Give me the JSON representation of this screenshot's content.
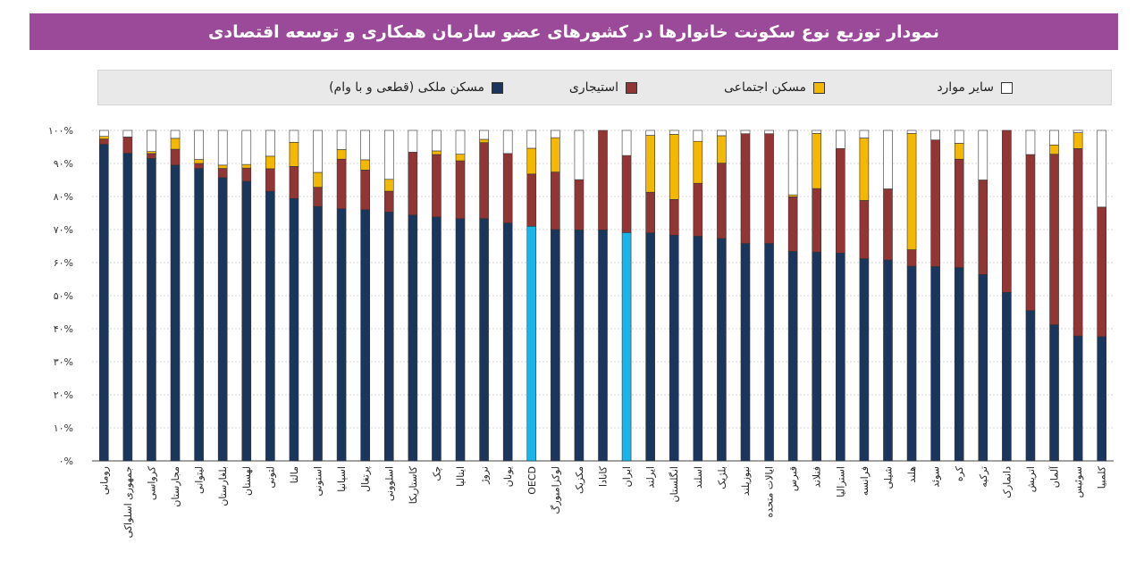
{
  "title": "نمودار توزیع نوع سکونت خانوارها در کشورهای عضو سازمان همکاری و توسعه اقتصادی",
  "colors": {
    "owner": "#1b365d",
    "highlight": "#19b4e8",
    "rent": "#913535",
    "social": "#f5b800",
    "other": "#ffffff"
  },
  "chart_data": {
    "type": "bar",
    "stacked": true,
    "orientation": "vertical",
    "ylim": [
      0,
      100
    ],
    "y_ticks": [
      0,
      10,
      20,
      30,
      40,
      50,
      60,
      70,
      80,
      90,
      100
    ],
    "y_tick_labels": [
      "۰%",
      "۱۰%",
      "۲۰%",
      "۳۰%",
      "۴۰%",
      "۵۰%",
      "۶۰%",
      "۷۰%",
      "۸۰%",
      "۹۰%",
      "۱۰۰%"
    ],
    "grid": true,
    "legend_position": "top",
    "highlighted_categories": [
      "OECD",
      "ایران"
    ],
    "categories": [
      "رومانی",
      "جمهوری اسلواکی",
      "کرواسی",
      "مجارستان",
      "لیتوانی",
      "بلغارستان",
      "لهستان",
      "لتونی",
      "مالتا",
      "استونی",
      "اسپانیا",
      "پرتغال",
      "اسلوونی",
      "کاستاریکا",
      "چک",
      "ایتالیا",
      "نروژ",
      "یونان",
      "OECD",
      "لوکزامبورگ",
      "مکزیک",
      "کانادا",
      "ایران",
      "ایرلند",
      "انگلستان",
      "اسلند",
      "بلژیک",
      "نیوزیلند",
      "ایالات متحده",
      "قبرس",
      "فنلاند",
      "استرالیا",
      "فرانسه",
      "شیلی",
      "هلند",
      "سوئد",
      "کره",
      "ترکیه",
      "دانمارک",
      "اتریش",
      "آلمان",
      "سوئیس",
      "کلمبیا"
    ],
    "series": [
      {
        "name": "مسکن ملکی (قطعی و با وام)",
        "key": "owner",
        "values": [
          95.8,
          93.1,
          91.5,
          89.5,
          88.5,
          85.7,
          84.6,
          81.6,
          79.4,
          77.0,
          76.3,
          76.0,
          75.3,
          74.4,
          73.8,
          73.3,
          73.3,
          72.0,
          71.0,
          70.0,
          69.9,
          69.9,
          69.1,
          69.0,
          68.3,
          68.0,
          67.3,
          65.8,
          65.8,
          63.4,
          63.2,
          62.9,
          61.2,
          60.8,
          58.9,
          58.8,
          58.5,
          56.4,
          51.0,
          45.5,
          41.2,
          37.8,
          37.6
        ]
      },
      {
        "name": "استیجاری",
        "key": "rent",
        "values": [
          1.6,
          4.9,
          1.5,
          4.8,
          1.5,
          2.8,
          4.0,
          6.8,
          9.7,
          5.8,
          15.0,
          12.0,
          6.3,
          19.0,
          18.9,
          17.5,
          23.0,
          21.0,
          15.8,
          17.4,
          15.2,
          30.1,
          23.3,
          12.3,
          10.8,
          16.0,
          22.8,
          33.2,
          33.2,
          16.5,
          19.2,
          31.6,
          17.6,
          21.5,
          5.0,
          38.3,
          32.8,
          28.6,
          49.0,
          47.2,
          51.6,
          56.7,
          39.2
        ]
      },
      {
        "name": "مسکن اجتماعی",
        "key": "social",
        "values": [
          0.8,
          0.0,
          0.6,
          3.3,
          1.2,
          1.0,
          1.1,
          3.8,
          7.3,
          4.5,
          2.9,
          3.1,
          3.6,
          0.0,
          1.1,
          2.0,
          1.0,
          0.0,
          7.8,
          10.4,
          0.0,
          0.0,
          0.0,
          17.2,
          19.7,
          12.7,
          8.3,
          0.0,
          0.0,
          0.6,
          16.7,
          0.0,
          18.9,
          0.0,
          35.2,
          0.0,
          4.8,
          0.0,
          0.0,
          0.0,
          2.8,
          4.8,
          0.0
        ]
      },
      {
        "name": "سایر موارد",
        "key": "other",
        "values": [
          1.8,
          2.0,
          6.4,
          2.4,
          8.8,
          10.5,
          10.3,
          7.8,
          3.6,
          12.7,
          5.8,
          8.9,
          14.8,
          6.6,
          6.2,
          7.2,
          2.7,
          7.0,
          5.4,
          2.2,
          14.9,
          0.0,
          7.6,
          1.5,
          1.2,
          3.3,
          1.6,
          1.0,
          1.0,
          19.5,
          0.9,
          5.5,
          2.3,
          17.7,
          0.9,
          2.9,
          3.9,
          15.0,
          0.0,
          7.3,
          4.4,
          0.7,
          23.2
        ]
      }
    ]
  }
}
